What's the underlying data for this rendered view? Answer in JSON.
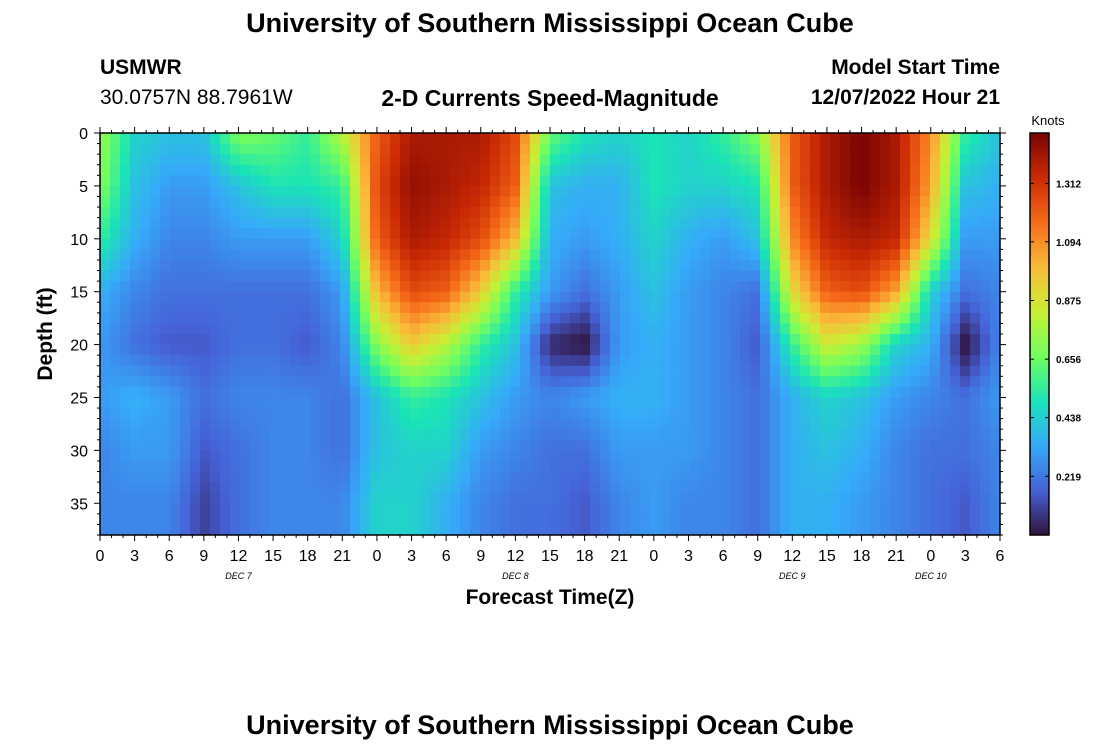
{
  "header": {
    "title_top": "University of Southern Mississippi Ocean Cube",
    "station_id": "USMWR",
    "coordinates": "30.0757N  88.7961W",
    "plot_title": "2-D Currents Speed-Magnitude",
    "model_label": "Model Start Time",
    "model_time": "12/07/2022 Hour 21",
    "title_bottom": "University of Southern Mississippi Ocean Cube"
  },
  "colorbar": {
    "unit": "Knots",
    "ticks": [
      "1.312",
      "1.094",
      "0.875",
      "0.656",
      "0.438",
      "0.219"
    ],
    "colors": [
      "#30123b",
      "#4662d7",
      "#36aaf9",
      "#1ae4b6",
      "#72fe5e",
      "#c8ef34",
      "#faba39",
      "#f66b19",
      "#ca2a04",
      "#7a0403"
    ]
  },
  "chart_data": {
    "type": "heatmap",
    "xlabel": "Forecast Time(Z)",
    "ylabel": "Depth (ft)",
    "y_ticks": [
      "0",
      "5",
      "10",
      "15",
      "20",
      "25",
      "30",
      "35"
    ],
    "ylim": [
      0,
      38
    ],
    "x_ticks": [
      "0",
      "3",
      "6",
      "9",
      "12",
      "15",
      "18",
      "21",
      "0",
      "3",
      "6",
      "9",
      "12",
      "15",
      "18",
      "21",
      "0",
      "3",
      "6",
      "9",
      "12",
      "15",
      "18",
      "21",
      "0",
      "3",
      "6"
    ],
    "x_range_hours": [
      0,
      78
    ],
    "day_labels": [
      "DEC 7",
      "DEC 8",
      "DEC 9",
      "DEC 10"
    ],
    "vmin": 0,
    "vmax": 1.5,
    "time_hours": [
      0,
      3,
      6,
      9,
      12,
      15,
      18,
      21,
      24,
      27,
      30,
      33,
      36,
      39,
      42,
      45,
      48,
      51,
      54,
      57,
      60,
      63,
      66,
      69,
      72,
      75,
      78
    ],
    "depth_ft": [
      0,
      5,
      10,
      15,
      20,
      25,
      30,
      35,
      38
    ],
    "speed_knots": [
      [
        0.75,
        0.45,
        0.4,
        0.4,
        0.7,
        0.65,
        0.55,
        0.8,
        1.2,
        1.4,
        1.4,
        1.4,
        1.25,
        0.65,
        0.5,
        0.45,
        0.5,
        0.45,
        0.55,
        0.7,
        1.2,
        1.4,
        1.5,
        1.4,
        1.1,
        0.55,
        0.4
      ],
      [
        0.7,
        0.4,
        0.3,
        0.3,
        0.4,
        0.5,
        0.5,
        0.55,
        1.25,
        1.45,
        1.4,
        1.35,
        1.2,
        0.4,
        0.35,
        0.35,
        0.5,
        0.45,
        0.45,
        0.5,
        1.2,
        1.4,
        1.5,
        1.4,
        1.05,
        0.4,
        0.35
      ],
      [
        0.55,
        0.35,
        0.25,
        0.25,
        0.3,
        0.3,
        0.3,
        0.45,
        1.2,
        1.4,
        1.35,
        1.25,
        1.0,
        0.35,
        0.3,
        0.35,
        0.45,
        0.35,
        0.3,
        0.4,
        1.1,
        1.35,
        1.4,
        1.35,
        0.9,
        0.3,
        0.3
      ],
      [
        0.35,
        0.25,
        0.2,
        0.2,
        0.2,
        0.2,
        0.2,
        0.3,
        1.0,
        1.25,
        1.2,
        0.95,
        0.55,
        0.3,
        0.2,
        0.3,
        0.4,
        0.3,
        0.25,
        0.2,
        0.9,
        1.2,
        1.25,
        1.05,
        0.45,
        0.2,
        0.25
      ],
      [
        0.3,
        0.2,
        0.15,
        0.15,
        0.2,
        0.2,
        0.15,
        0.25,
        0.7,
        0.95,
        0.8,
        0.55,
        0.4,
        0.05,
        0.0,
        0.3,
        0.35,
        0.3,
        0.25,
        0.15,
        0.55,
        0.85,
        0.75,
        0.45,
        0.35,
        0.0,
        0.25
      ],
      [
        0.3,
        0.35,
        0.3,
        0.2,
        0.25,
        0.25,
        0.25,
        0.2,
        0.4,
        0.55,
        0.5,
        0.4,
        0.3,
        0.25,
        0.3,
        0.35,
        0.35,
        0.3,
        0.25,
        0.2,
        0.35,
        0.45,
        0.4,
        0.3,
        0.25,
        0.2,
        0.3
      ],
      [
        0.25,
        0.3,
        0.3,
        0.15,
        0.2,
        0.25,
        0.25,
        0.2,
        0.4,
        0.45,
        0.45,
        0.3,
        0.25,
        0.2,
        0.2,
        0.3,
        0.3,
        0.3,
        0.25,
        0.2,
        0.35,
        0.4,
        0.35,
        0.25,
        0.2,
        0.2,
        0.25
      ],
      [
        0.25,
        0.25,
        0.25,
        0.1,
        0.2,
        0.25,
        0.25,
        0.25,
        0.45,
        0.45,
        0.35,
        0.25,
        0.2,
        0.2,
        0.15,
        0.25,
        0.3,
        0.25,
        0.25,
        0.2,
        0.35,
        0.35,
        0.3,
        0.25,
        0.2,
        0.15,
        0.25
      ],
      [
        0.25,
        0.25,
        0.25,
        0.1,
        0.2,
        0.25,
        0.25,
        0.25,
        0.45,
        0.45,
        0.35,
        0.25,
        0.2,
        0.2,
        0.15,
        0.25,
        0.3,
        0.25,
        0.25,
        0.2,
        0.35,
        0.35,
        0.3,
        0.25,
        0.2,
        0.15,
        0.25
      ]
    ]
  }
}
